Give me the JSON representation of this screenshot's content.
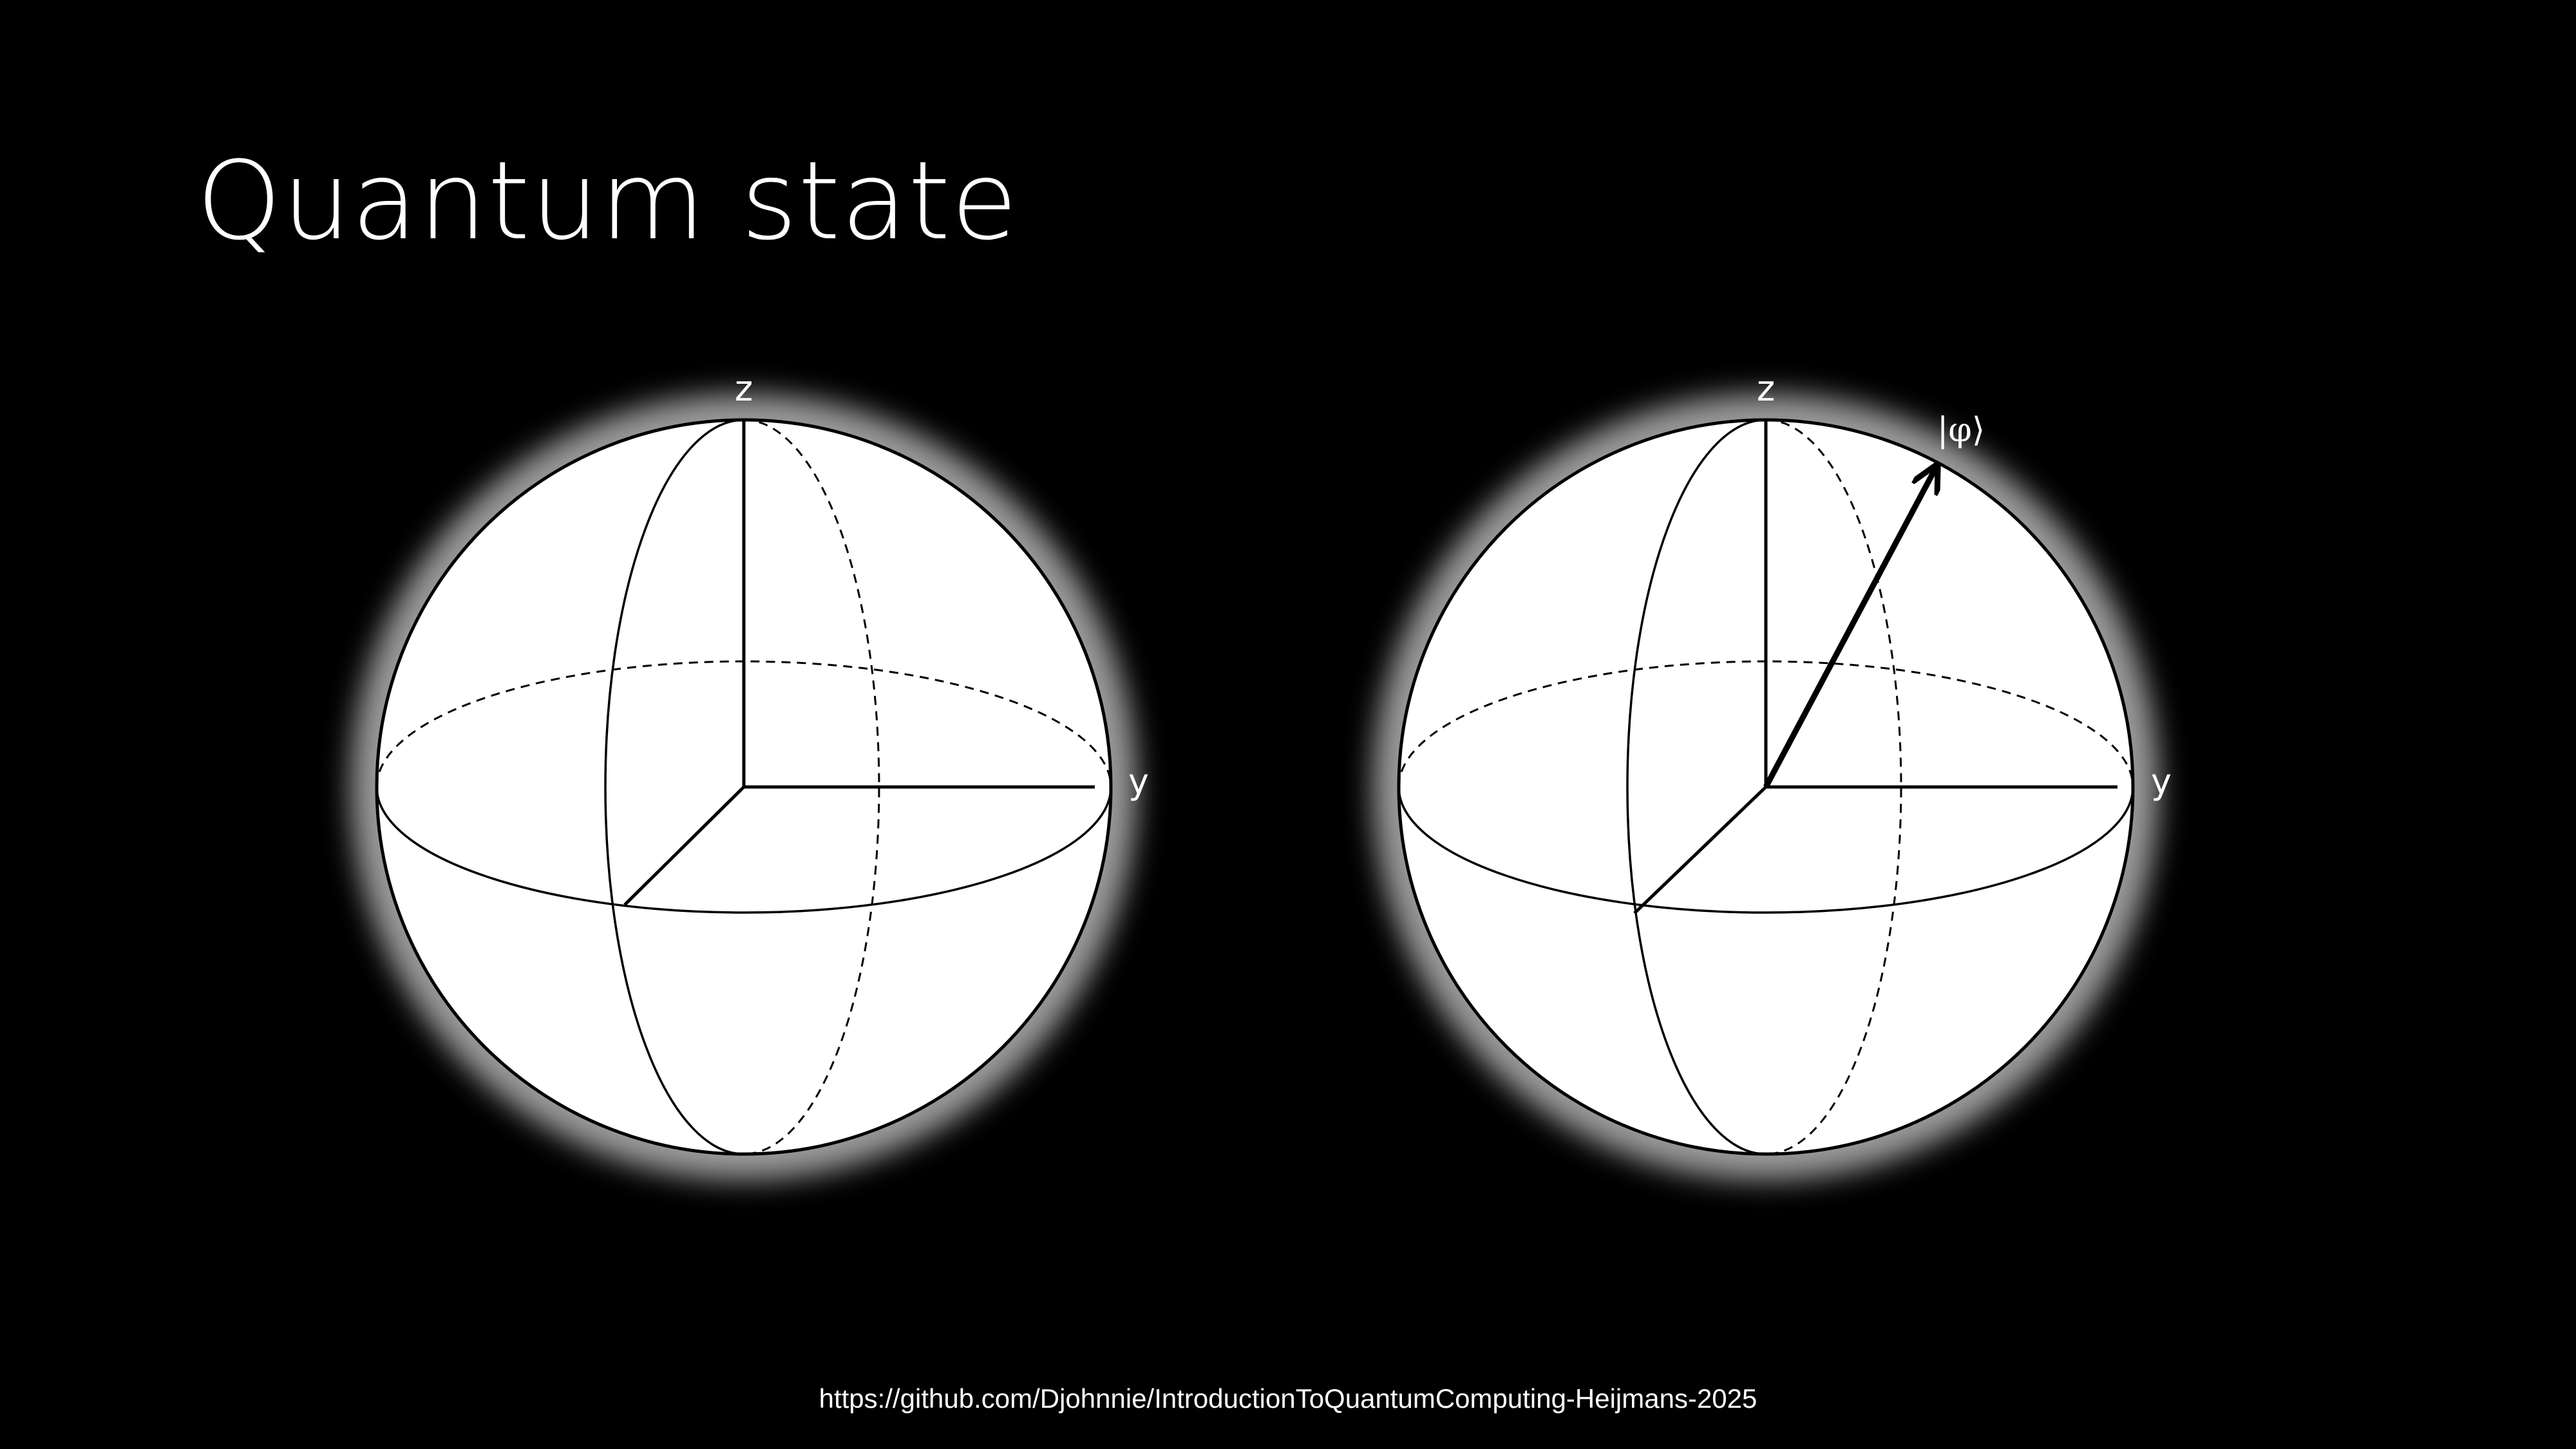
{
  "slide": {
    "title": "Quantum state",
    "footer_url": "https://github.com/Djohnnie/IntroductionToQuantumComputing-Heijmans-2025"
  },
  "diagrams": [
    {
      "z_label": "z",
      "y_label": "y"
    },
    {
      "z_label": "z",
      "y_label": "y",
      "state_label": "|φ⟩"
    }
  ],
  "colors": {
    "background": "#000000",
    "sphere_fill": "#ffffff",
    "line": "#000000",
    "glow": "#9a9a9a",
    "text": "#ffffff"
  }
}
